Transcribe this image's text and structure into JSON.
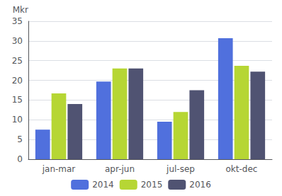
{
  "chart_data": {
    "type": "bar",
    "ylabel": "Mkr",
    "categories": [
      "jan-mar",
      "apr-jun",
      "jul-sep",
      "okt-dec"
    ],
    "series": [
      {
        "name": "2014",
        "values": [
          7.5,
          19.7,
          9.5,
          30.7
        ]
      },
      {
        "name": "2015",
        "values": [
          16.7,
          23.0,
          12.0,
          23.7
        ]
      },
      {
        "name": "2016",
        "values": [
          14.0,
          23.0,
          17.5,
          22.2
        ]
      }
    ],
    "ylim": [
      0,
      35
    ],
    "yticks": [
      0,
      5,
      10,
      15,
      20,
      25,
      30,
      35
    ],
    "grid": true,
    "legend": "bottom"
  }
}
